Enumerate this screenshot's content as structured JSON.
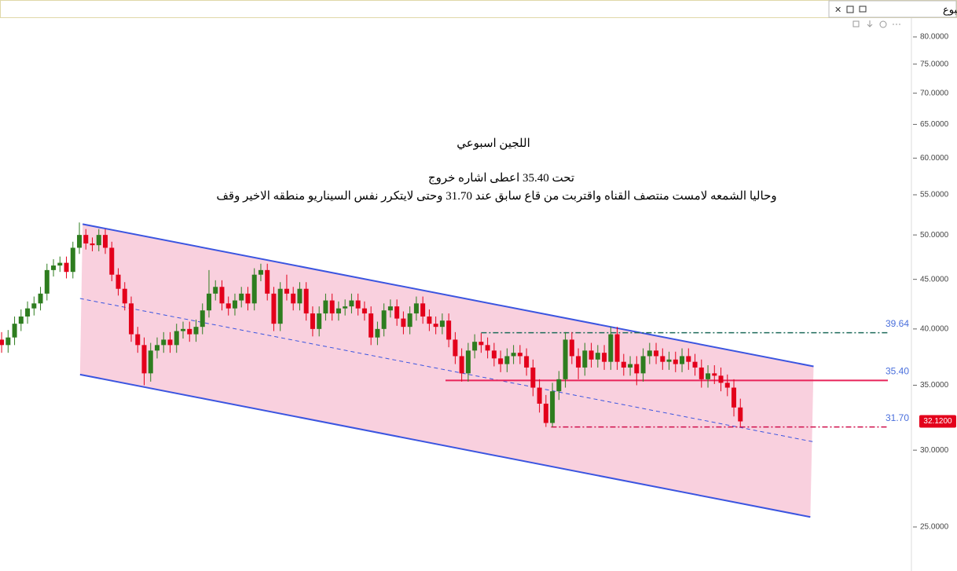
{
  "chart_data": {
    "type": "candlestick",
    "header": "اللجين - أسبوع",
    "annotations": [
      "اللجين اسبوعي",
      "تحت 35.40 اعطى اشاره خروج",
      "وحاليا الشمعه لامست منتصف القناه واقتربت من قاع سابق عند 31.70  وحتى لايتكرر نفس السيناريو منطقه الاخير وقف"
    ],
    "log_y": true,
    "ylim": [
      22.52,
      83.35
    ],
    "yticks": [
      {
        "value": 25,
        "label": "25.0000"
      },
      {
        "value": 30,
        "label": "30.0000"
      },
      {
        "value": 35,
        "label": "35.0000"
      },
      {
        "value": 40,
        "label": "40.0000"
      },
      {
        "value": 45,
        "label": "45.0000"
      },
      {
        "value": 50,
        "label": "50.0000"
      },
      {
        "value": 55,
        "label": "55.0000"
      },
      {
        "value": 60,
        "label": "60.0000"
      },
      {
        "value": 65,
        "label": "65.0000"
      },
      {
        "value": 70,
        "label": "70.0000"
      },
      {
        "value": 75,
        "label": "75.0000"
      },
      {
        "value": 80,
        "label": "80.0000"
      }
    ],
    "xlim": [
      -0.25,
      140.4
    ],
    "up_color": "#2e7d1f",
    "down_color": "#e3001b",
    "open": [
      39.0,
      38.5,
      39.2,
      40.5,
      41.2,
      42.0,
      42.5,
      43.5,
      46.0,
      46.5,
      46.8,
      45.8,
      48.5,
      50.0,
      49.0,
      48.8,
      50.0,
      48.5,
      45.5,
      44.0,
      42.5,
      39.5,
      38.5,
      36.0,
      38.0,
      38.5,
      39.0,
      38.5,
      39.8,
      40.0,
      39.5,
      40.2,
      41.8,
      43.5,
      44.2,
      42.5,
      42.0,
      42.8,
      43.5,
      42.5,
      45.5,
      46.0,
      43.5,
      40.5,
      44.0,
      43.5,
      42.5,
      44.0,
      41.5,
      40.0,
      41.5,
      42.8,
      41.5,
      42.0,
      42.2,
      42.8,
      42.0,
      41.5,
      39.2,
      40.0,
      41.8,
      42.2,
      41.0,
      40.2,
      41.5,
      42.5,
      41.2,
      40.5,
      40.2,
      40.8,
      39.0,
      37.5,
      36.0,
      38.0,
      38.8,
      38.5,
      38.0,
      37.3,
      36.8,
      37.5,
      37.8,
      37.5,
      36.5,
      34.8,
      33.5,
      32.0,
      34.5,
      35.5,
      39.0,
      37.5,
      36.5,
      38.0,
      37.2,
      37.8,
      37.0,
      39.5,
      37.0,
      36.5,
      36.8,
      36.0,
      37.5,
      38.0,
      37.5,
      37.0,
      37.2,
      36.8,
      37.5,
      37.0,
      36.5,
      35.5,
      36.0,
      35.8,
      35.2,
      34.8,
      33.2
    ],
    "high": [
      39.7,
      39.9,
      41.2,
      41.9,
      42.7,
      43.2,
      44.2,
      46.7,
      47.2,
      47.5,
      47.5,
      49.2,
      51.5,
      50.7,
      49.7,
      50.7,
      50.7,
      49.2,
      46.2,
      44.7,
      43.2,
      40.2,
      39.2,
      38.7,
      39.2,
      39.7,
      39.7,
      40.5,
      40.7,
      40.7,
      40.9,
      42.5,
      46.0,
      44.9,
      44.9,
      43.2,
      43.5,
      44.2,
      44.2,
      46.2,
      46.7,
      46.7,
      44.2,
      44.7,
      45.5,
      44.2,
      44.7,
      44.7,
      42.2,
      42.2,
      43.5,
      43.5,
      42.7,
      42.9,
      43.5,
      43.5,
      42.7,
      42.2,
      40.7,
      42.5,
      42.9,
      42.9,
      41.7,
      42.2,
      43.2,
      43.2,
      41.9,
      41.2,
      41.5,
      41.5,
      39.7,
      38.2,
      38.7,
      39.5,
      39.6,
      39.2,
      38.7,
      38.0,
      38.2,
      38.5,
      38.5,
      38.2,
      37.2,
      35.5,
      34.2,
      35.2,
      36.2,
      39.7,
      39.7,
      38.2,
      38.7,
      38.7,
      38.5,
      38.5,
      40.2,
      40.2,
      37.7,
      37.5,
      37.5,
      38.2,
      38.7,
      38.7,
      38.2,
      37.9,
      37.9,
      38.2,
      38.2,
      37.7,
      37.2,
      36.7,
      36.7,
      36.5,
      35.9,
      35.5,
      33.9
    ],
    "low": [
      37.8,
      37.8,
      38.5,
      39.8,
      40.5,
      41.3,
      41.8,
      42.8,
      45.3,
      45.8,
      45.1,
      45.1,
      47.8,
      48.3,
      48.1,
      48.1,
      47.8,
      44.8,
      43.3,
      41.8,
      38.8,
      37.8,
      35.0,
      35.3,
      37.3,
      37.8,
      37.8,
      37.8,
      39.1,
      38.8,
      38.8,
      39.5,
      41.1,
      42.8,
      41.8,
      41.3,
      41.3,
      42.1,
      41.8,
      41.8,
      44.8,
      42.8,
      39.8,
      39.8,
      42.8,
      41.8,
      41.8,
      40.8,
      39.3,
      39.3,
      40.8,
      40.8,
      40.8,
      41.3,
      41.5,
      41.3,
      40.8,
      38.5,
      38.5,
      39.3,
      41.1,
      40.3,
      39.5,
      39.5,
      40.8,
      40.5,
      39.8,
      39.5,
      39.5,
      38.3,
      36.8,
      35.3,
      35.3,
      37.3,
      37.8,
      37.3,
      36.6,
      36.1,
      36.1,
      36.8,
      36.8,
      35.8,
      34.1,
      32.8,
      31.7,
      31.7,
      33.8,
      34.8,
      36.8,
      35.5,
      35.8,
      36.5,
      36.5,
      36.3,
      36.3,
      36.3,
      35.8,
      35.8,
      35.0,
      35.3,
      36.8,
      36.8,
      36.3,
      36.3,
      36.1,
      36.1,
      36.3,
      35.8,
      34.8,
      34.8,
      35.1,
      34.5,
      34.1,
      32.5,
      31.7
    ],
    "close": [
      38.5,
      39.2,
      40.5,
      41.2,
      42.0,
      42.5,
      43.5,
      46.0,
      46.5,
      46.8,
      45.8,
      48.5,
      50.0,
      49.0,
      48.8,
      50.0,
      48.5,
      45.5,
      44.0,
      42.5,
      39.5,
      38.5,
      36.0,
      38.0,
      38.5,
      39.0,
      38.5,
      39.8,
      40.0,
      39.5,
      40.2,
      41.8,
      43.5,
      44.2,
      42.5,
      42.0,
      42.8,
      43.5,
      42.5,
      45.5,
      46.0,
      43.5,
      40.5,
      44.0,
      43.5,
      42.5,
      44.0,
      41.5,
      40.0,
      41.5,
      42.8,
      41.5,
      42.0,
      42.2,
      42.8,
      42.0,
      41.5,
      39.2,
      40.0,
      41.8,
      42.2,
      41.0,
      40.2,
      41.5,
      42.5,
      41.2,
      40.5,
      40.2,
      40.8,
      39.0,
      37.5,
      36.0,
      38.0,
      38.8,
      38.5,
      38.0,
      37.3,
      36.8,
      37.5,
      37.8,
      37.5,
      36.5,
      34.8,
      33.5,
      32.0,
      34.5,
      35.5,
      39.0,
      37.5,
      36.5,
      38.0,
      37.2,
      37.8,
      37.0,
      39.5,
      37.0,
      36.5,
      36.8,
      36.0,
      37.5,
      38.0,
      37.5,
      37.0,
      37.2,
      36.8,
      37.5,
      37.0,
      36.5,
      35.5,
      36.0,
      35.8,
      35.2,
      34.8,
      33.2,
      32.12
    ],
    "channel": {
      "color": "#3b55e0",
      "fill": "#f9d0de",
      "upper": {
        "x": [
          12.5,
          125.3
        ],
        "y": [
          51.3,
          36.6
        ]
      },
      "lower": {
        "x": [
          12.1,
          124.8
        ],
        "y": [
          35.9,
          25.6
        ]
      },
      "middle": {
        "x": [
          12.1,
          125.3
        ],
        "y": [
          43.0,
          30.6
        ]
      }
    },
    "levels": [
      {
        "value": 39.64,
        "label": "39.64",
        "start": 74,
        "color": "#1d6b5a",
        "style": "dashdot"
      },
      {
        "value": 35.4,
        "label": "35.40",
        "start": 68.5,
        "color": "#e8245a",
        "style": "solid"
      },
      {
        "value": 31.7,
        "label": "31.70",
        "start": 84.8,
        "color": "#d0104c",
        "style": "dashdot"
      }
    ],
    "level_label_color": "#4a6fdc",
    "last_price": {
      "value": 32.12,
      "label": "32.1200",
      "color": "#e3001b"
    }
  }
}
